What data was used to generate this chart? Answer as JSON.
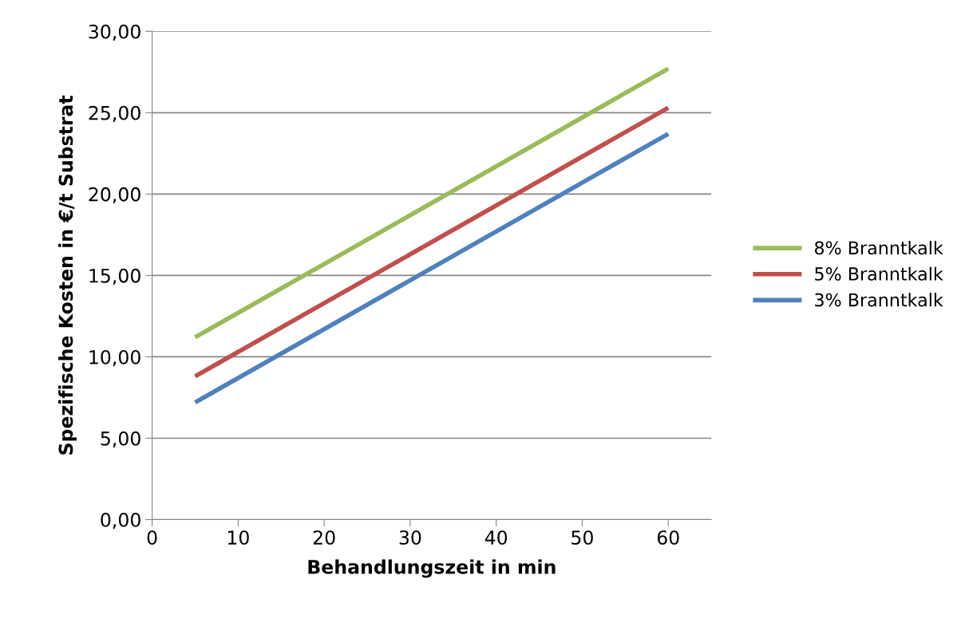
{
  "chart_data": {
    "type": "line",
    "xlabel": "Behandlungszeit in min",
    "ylabel": "Spezifische Kosten in €/t Substrat",
    "x": [
      5,
      60
    ],
    "series": [
      {
        "name": "8% Branntkalk",
        "color": "#9bbb59",
        "values": [
          11.2,
          27.7
        ]
      },
      {
        "name": "5% Branntkalk",
        "color": "#c0504d",
        "values": [
          8.8,
          25.3
        ]
      },
      {
        "name": "3% Branntkalk",
        "color": "#4f81bd",
        "values": [
          7.2,
          23.7
        ]
      }
    ],
    "xlim": [
      0,
      65
    ],
    "xticks": [
      0,
      10,
      20,
      30,
      40,
      50,
      60
    ],
    "ylim": [
      0,
      30
    ],
    "yticks": [
      {
        "value": 0,
        "label": "0,00"
      },
      {
        "value": 5,
        "label": "5,00"
      },
      {
        "value": 10,
        "label": "10,00"
      },
      {
        "value": 15,
        "label": "15,00"
      },
      {
        "value": 20,
        "label": "20,00"
      },
      {
        "value": 25,
        "label": "25,00"
      },
      {
        "value": 30,
        "label": "30,00"
      }
    ],
    "grid": "y",
    "legend": "right",
    "marker": "none",
    "line_style": "solid"
  }
}
